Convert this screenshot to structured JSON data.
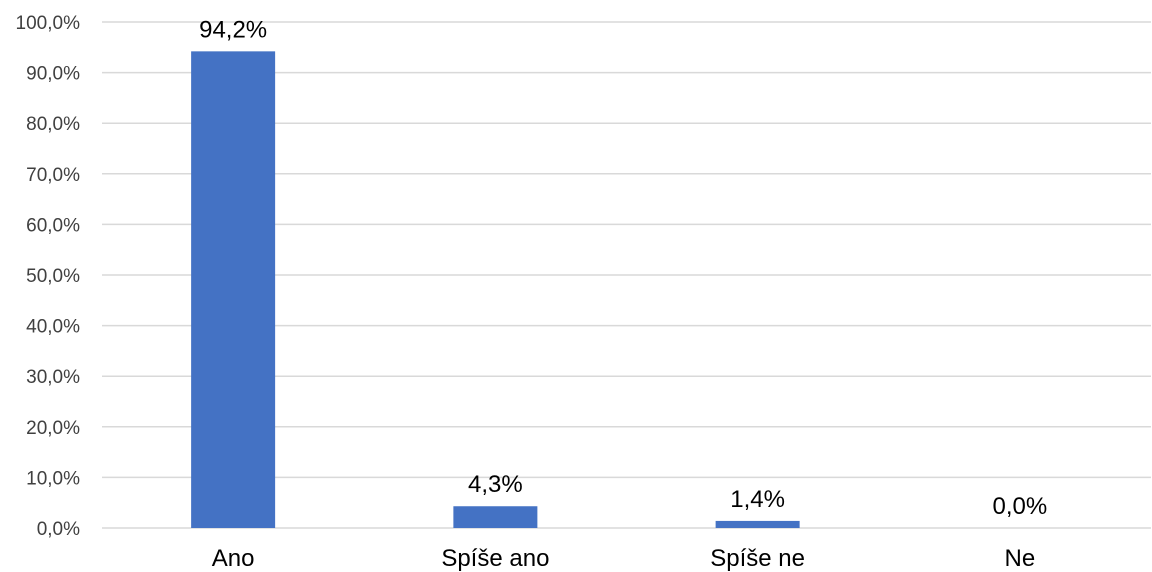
{
  "chart_data": {
    "type": "bar",
    "categories": [
      "Ano",
      "Spíše ano",
      "Spíše ne",
      "Ne"
    ],
    "values": [
      94.2,
      4.3,
      1.4,
      0.0
    ],
    "data_labels": [
      "94,2%",
      "4,3%",
      "1,4%",
      "0,0%"
    ],
    "ylim": [
      0,
      100
    ],
    "yticks": [
      0,
      10,
      20,
      30,
      40,
      50,
      60,
      70,
      80,
      90,
      100
    ],
    "ytick_labels": [
      "0,0%",
      "10,0%",
      "20,0%",
      "30,0%",
      "40,0%",
      "50,0%",
      "60,0%",
      "70,0%",
      "80,0%",
      "90,0%",
      "100,0%"
    ],
    "grid": true,
    "legend": "none",
    "bar_color": "#4472c4",
    "grid_color": "#d9d9d9"
  }
}
